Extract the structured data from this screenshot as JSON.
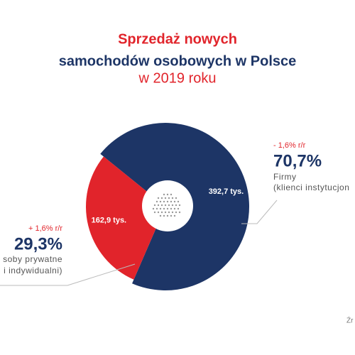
{
  "chart_data": {
    "type": "pie",
    "title": [
      "Sprzedaż nowych",
      "samochodów osobowych w Polsce",
      "w 2019 roku"
    ],
    "categories": [
      "Firmy",
      "soby prywatne"
    ],
    "descriptions": [
      "(klienci instytucjon",
      "i indywidualni)"
    ],
    "values": [
      392.7,
      162.9
    ],
    "value_labels": [
      "392,7 tys.",
      "162,9 tys."
    ],
    "shares": [
      70.7,
      29.3
    ],
    "share_labels": [
      "70,7%",
      "29,3%"
    ],
    "changes": [
      -1.6,
      1.6
    ],
    "change_labels": [
      "- 1,6% r/r",
      "+ 1,6% r/r"
    ],
    "colors": [
      "#1d3566",
      "#e1242b"
    ],
    "source": "Źr"
  }
}
